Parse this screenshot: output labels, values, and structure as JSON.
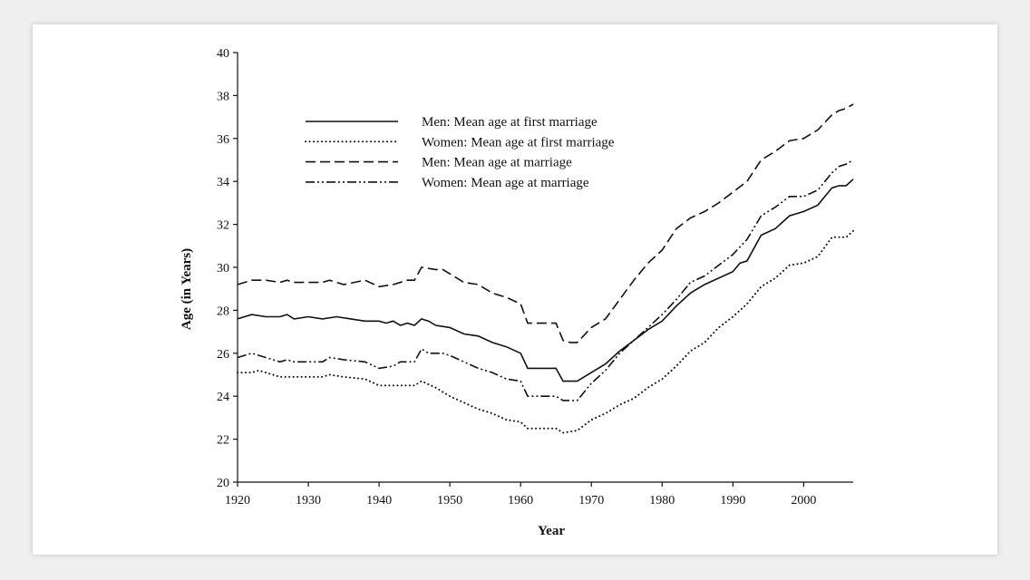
{
  "chart_data": {
    "type": "line",
    "title": "",
    "xlabel": "Year",
    "ylabel": "Age (in Years)",
    "xlim": [
      1920,
      2007
    ],
    "ylim": [
      20,
      40
    ],
    "x_ticks": [
      1920,
      1930,
      1940,
      1950,
      1960,
      1970,
      1980,
      1990,
      2000
    ],
    "y_ticks": [
      20,
      22,
      24,
      26,
      28,
      30,
      32,
      34,
      36,
      38,
      40
    ],
    "grid": false,
    "legend_position": "top-left",
    "series": [
      {
        "name": "Men: Mean age at first marriage",
        "style": "solid",
        "color": "#111111",
        "points": [
          [
            1920,
            27.6
          ],
          [
            1922,
            27.8
          ],
          [
            1924,
            27.7
          ],
          [
            1926,
            27.7
          ],
          [
            1927,
            27.8
          ],
          [
            1928,
            27.6
          ],
          [
            1930,
            27.7
          ],
          [
            1932,
            27.6
          ],
          [
            1934,
            27.7
          ],
          [
            1936,
            27.6
          ],
          [
            1938,
            27.5
          ],
          [
            1940,
            27.5
          ],
          [
            1941,
            27.4
          ],
          [
            1942,
            27.5
          ],
          [
            1943,
            27.3
          ],
          [
            1944,
            27.4
          ],
          [
            1945,
            27.3
          ],
          [
            1946,
            27.6
          ],
          [
            1947,
            27.5
          ],
          [
            1948,
            27.3
          ],
          [
            1950,
            27.2
          ],
          [
            1952,
            26.9
          ],
          [
            1954,
            26.8
          ],
          [
            1956,
            26.5
          ],
          [
            1958,
            26.3
          ],
          [
            1960,
            26.0
          ],
          [
            1961,
            25.3
          ],
          [
            1962,
            25.3
          ],
          [
            1964,
            25.3
          ],
          [
            1965,
            25.3
          ],
          [
            1966,
            24.7
          ],
          [
            1968,
            24.7
          ],
          [
            1970,
            25.1
          ],
          [
            1972,
            25.5
          ],
          [
            1974,
            26.1
          ],
          [
            1976,
            26.6
          ],
          [
            1978,
            27.1
          ],
          [
            1980,
            27.5
          ],
          [
            1982,
            28.2
          ],
          [
            1984,
            28.8
          ],
          [
            1986,
            29.2
          ],
          [
            1988,
            29.5
          ],
          [
            1990,
            29.8
          ],
          [
            1991,
            30.2
          ],
          [
            1992,
            30.3
          ],
          [
            1994,
            31.5
          ],
          [
            1996,
            31.8
          ],
          [
            1998,
            32.4
          ],
          [
            2000,
            32.6
          ],
          [
            2002,
            32.9
          ],
          [
            2004,
            33.7
          ],
          [
            2005,
            33.8
          ],
          [
            2006,
            33.8
          ],
          [
            2007,
            34.1
          ]
        ]
      },
      {
        "name": "Women: Mean age at first marriage",
        "style": "dotted",
        "color": "#111111",
        "points": [
          [
            1920,
            25.1
          ],
          [
            1922,
            25.1
          ],
          [
            1923,
            25.2
          ],
          [
            1925,
            25.0
          ],
          [
            1926,
            24.9
          ],
          [
            1928,
            24.9
          ],
          [
            1930,
            24.9
          ],
          [
            1932,
            24.9
          ],
          [
            1933,
            25.0
          ],
          [
            1935,
            24.9
          ],
          [
            1938,
            24.8
          ],
          [
            1940,
            24.5
          ],
          [
            1942,
            24.5
          ],
          [
            1944,
            24.5
          ],
          [
            1945,
            24.5
          ],
          [
            1946,
            24.7
          ],
          [
            1948,
            24.4
          ],
          [
            1950,
            24.0
          ],
          [
            1952,
            23.7
          ],
          [
            1954,
            23.4
          ],
          [
            1956,
            23.2
          ],
          [
            1958,
            22.9
          ],
          [
            1960,
            22.8
          ],
          [
            1961,
            22.5
          ],
          [
            1962,
            22.5
          ],
          [
            1964,
            22.5
          ],
          [
            1965,
            22.5
          ],
          [
            1966,
            22.3
          ],
          [
            1968,
            22.4
          ],
          [
            1970,
            22.9
          ],
          [
            1972,
            23.2
          ],
          [
            1974,
            23.6
          ],
          [
            1976,
            23.9
          ],
          [
            1978,
            24.4
          ],
          [
            1980,
            24.8
          ],
          [
            1982,
            25.4
          ],
          [
            1984,
            26.1
          ],
          [
            1986,
            26.5
          ],
          [
            1988,
            27.2
          ],
          [
            1990,
            27.7
          ],
          [
            1992,
            28.3
          ],
          [
            1994,
            29.1
          ],
          [
            1996,
            29.5
          ],
          [
            1998,
            30.1
          ],
          [
            2000,
            30.2
          ],
          [
            2002,
            30.5
          ],
          [
            2004,
            31.4
          ],
          [
            2006,
            31.4
          ],
          [
            2007,
            31.7
          ]
        ]
      },
      {
        "name": "Men: Mean age at marriage",
        "style": "dashed",
        "color": "#111111",
        "points": [
          [
            1920,
            29.2
          ],
          [
            1922,
            29.4
          ],
          [
            1924,
            29.4
          ],
          [
            1926,
            29.3
          ],
          [
            1927,
            29.4
          ],
          [
            1928,
            29.3
          ],
          [
            1930,
            29.3
          ],
          [
            1932,
            29.3
          ],
          [
            1933,
            29.4
          ],
          [
            1935,
            29.2
          ],
          [
            1938,
            29.4
          ],
          [
            1940,
            29.1
          ],
          [
            1942,
            29.2
          ],
          [
            1944,
            29.4
          ],
          [
            1945,
            29.4
          ],
          [
            1946,
            30.0
          ],
          [
            1948,
            29.9
          ],
          [
            1949,
            29.9
          ],
          [
            1950,
            29.7
          ],
          [
            1952,
            29.3
          ],
          [
            1954,
            29.2
          ],
          [
            1956,
            28.8
          ],
          [
            1958,
            28.6
          ],
          [
            1960,
            28.3
          ],
          [
            1961,
            27.4
          ],
          [
            1962,
            27.4
          ],
          [
            1964,
            27.4
          ],
          [
            1965,
            27.4
          ],
          [
            1966,
            26.6
          ],
          [
            1967,
            26.5
          ],
          [
            1968,
            26.5
          ],
          [
            1970,
            27.2
          ],
          [
            1972,
            27.6
          ],
          [
            1974,
            28.5
          ],
          [
            1976,
            29.4
          ],
          [
            1978,
            30.2
          ],
          [
            1980,
            30.8
          ],
          [
            1982,
            31.8
          ],
          [
            1984,
            32.3
          ],
          [
            1986,
            32.6
          ],
          [
            1988,
            33.0
          ],
          [
            1990,
            33.5
          ],
          [
            1992,
            34.0
          ],
          [
            1994,
            35.0
          ],
          [
            1996,
            35.4
          ],
          [
            1998,
            35.9
          ],
          [
            2000,
            36.0
          ],
          [
            2002,
            36.4
          ],
          [
            2004,
            37.1
          ],
          [
            2005,
            37.3
          ],
          [
            2006,
            37.4
          ],
          [
            2007,
            37.6
          ]
        ]
      },
      {
        "name": "Women: Mean age at marriage",
        "style": "dash-dot",
        "color": "#111111",
        "points": [
          [
            1920,
            25.8
          ],
          [
            1922,
            26.0
          ],
          [
            1924,
            25.8
          ],
          [
            1926,
            25.6
          ],
          [
            1927,
            25.7
          ],
          [
            1928,
            25.6
          ],
          [
            1930,
            25.6
          ],
          [
            1932,
            25.6
          ],
          [
            1933,
            25.8
          ],
          [
            1935,
            25.7
          ],
          [
            1938,
            25.6
          ],
          [
            1940,
            25.3
          ],
          [
            1942,
            25.4
          ],
          [
            1943,
            25.6
          ],
          [
            1945,
            25.6
          ],
          [
            1946,
            26.2
          ],
          [
            1947,
            26.0
          ],
          [
            1949,
            26.0
          ],
          [
            1950,
            25.9
          ],
          [
            1952,
            25.6
          ],
          [
            1954,
            25.3
          ],
          [
            1956,
            25.1
          ],
          [
            1958,
            24.8
          ],
          [
            1960,
            24.7
          ],
          [
            1961,
            24.0
          ],
          [
            1962,
            24.0
          ],
          [
            1964,
            24.0
          ],
          [
            1965,
            24.0
          ],
          [
            1966,
            23.8
          ],
          [
            1968,
            23.8
          ],
          [
            1970,
            24.6
          ],
          [
            1972,
            25.2
          ],
          [
            1974,
            26.0
          ],
          [
            1976,
            26.6
          ],
          [
            1978,
            27.2
          ],
          [
            1980,
            27.8
          ],
          [
            1982,
            28.5
          ],
          [
            1984,
            29.3
          ],
          [
            1986,
            29.6
          ],
          [
            1988,
            30.1
          ],
          [
            1990,
            30.6
          ],
          [
            1992,
            31.3
          ],
          [
            1994,
            32.4
          ],
          [
            1996,
            32.8
          ],
          [
            1998,
            33.3
          ],
          [
            2000,
            33.3
          ],
          [
            2002,
            33.6
          ],
          [
            2004,
            34.4
          ],
          [
            2005,
            34.7
          ],
          [
            2006,
            34.8
          ],
          [
            2007,
            35.0
          ]
        ]
      }
    ]
  }
}
